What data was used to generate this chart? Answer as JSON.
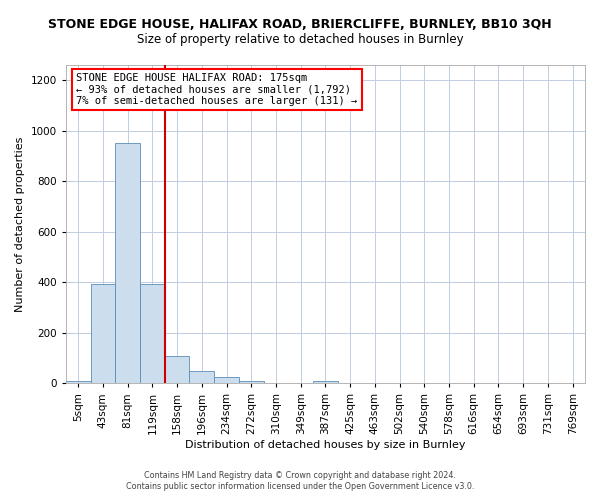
{
  "title": "STONE EDGE HOUSE, HALIFAX ROAD, BRIERCLIFFE, BURNLEY, BB10 3QH",
  "subtitle": "Size of property relative to detached houses in Burnley",
  "xlabel": "Distribution of detached houses by size in Burnley",
  "ylabel": "Number of detached properties",
  "footer_line1": "Contains HM Land Registry data © Crown copyright and database right 2024.",
  "footer_line2": "Contains public sector information licensed under the Open Government Licence v3.0.",
  "bin_labels": [
    "5sqm",
    "43sqm",
    "81sqm",
    "119sqm",
    "158sqm",
    "196sqm",
    "234sqm",
    "272sqm",
    "310sqm",
    "349sqm",
    "387sqm",
    "425sqm",
    "463sqm",
    "502sqm",
    "540sqm",
    "578sqm",
    "616sqm",
    "654sqm",
    "693sqm",
    "731sqm",
    "769sqm"
  ],
  "bar_heights": [
    8,
    395,
    950,
    395,
    110,
    50,
    25,
    8,
    0,
    0,
    8,
    0,
    0,
    0,
    0,
    0,
    0,
    0,
    0,
    0,
    0
  ],
  "bar_color": "#ccdded",
  "bar_edge_color": "#5b8db8",
  "vline_x": 4,
  "vline_color": "#cc0000",
  "ylim": [
    0,
    1260
  ],
  "yticks": [
    0,
    200,
    400,
    600,
    800,
    1000,
    1200
  ],
  "annotation_title": "STONE EDGE HOUSE HALIFAX ROAD: 175sqm",
  "annotation_line2": "← 93% of detached houses are smaller (1,792)",
  "annotation_line3": "7% of semi-detached houses are larger (131) →",
  "background_color": "#ffffff",
  "grid_color": "#c0cfe0",
  "title_fontsize": 9,
  "subtitle_fontsize": 8.5,
  "axis_label_fontsize": 8,
  "tick_fontsize": 7.5,
  "footer_fontsize": 5.8
}
